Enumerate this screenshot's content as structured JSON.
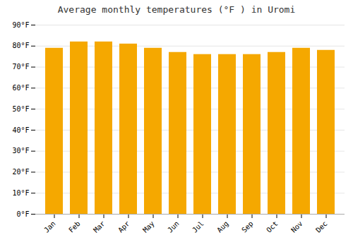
{
  "chart_data": {
    "type": "bar",
    "title": "Average monthly temperatures (°F ) in Uromi",
    "categories": [
      "Jan",
      "Feb",
      "Mar",
      "Apr",
      "May",
      "Jun",
      "Jul",
      "Aug",
      "Sep",
      "Oct",
      "Nov",
      "Dec"
    ],
    "values": [
      79,
      82,
      82,
      81,
      79,
      77,
      76,
      76,
      76,
      77,
      79,
      78
    ],
    "color": "#F5A800",
    "ylim": [
      0,
      90
    ],
    "yticks": [
      {
        "value": 0,
        "label": "0°F"
      },
      {
        "value": 10,
        "label": "10°F"
      },
      {
        "value": 20,
        "label": "20°F"
      },
      {
        "value": 30,
        "label": "30°F"
      },
      {
        "value": 40,
        "label": "40°F"
      },
      {
        "value": 50,
        "label": "50°F"
      },
      {
        "value": 60,
        "label": "60°F"
      },
      {
        "value": 70,
        "label": "70°F"
      },
      {
        "value": 80,
        "label": "80°F"
      },
      {
        "value": 90,
        "label": "90°F"
      }
    ],
    "grid": true
  }
}
